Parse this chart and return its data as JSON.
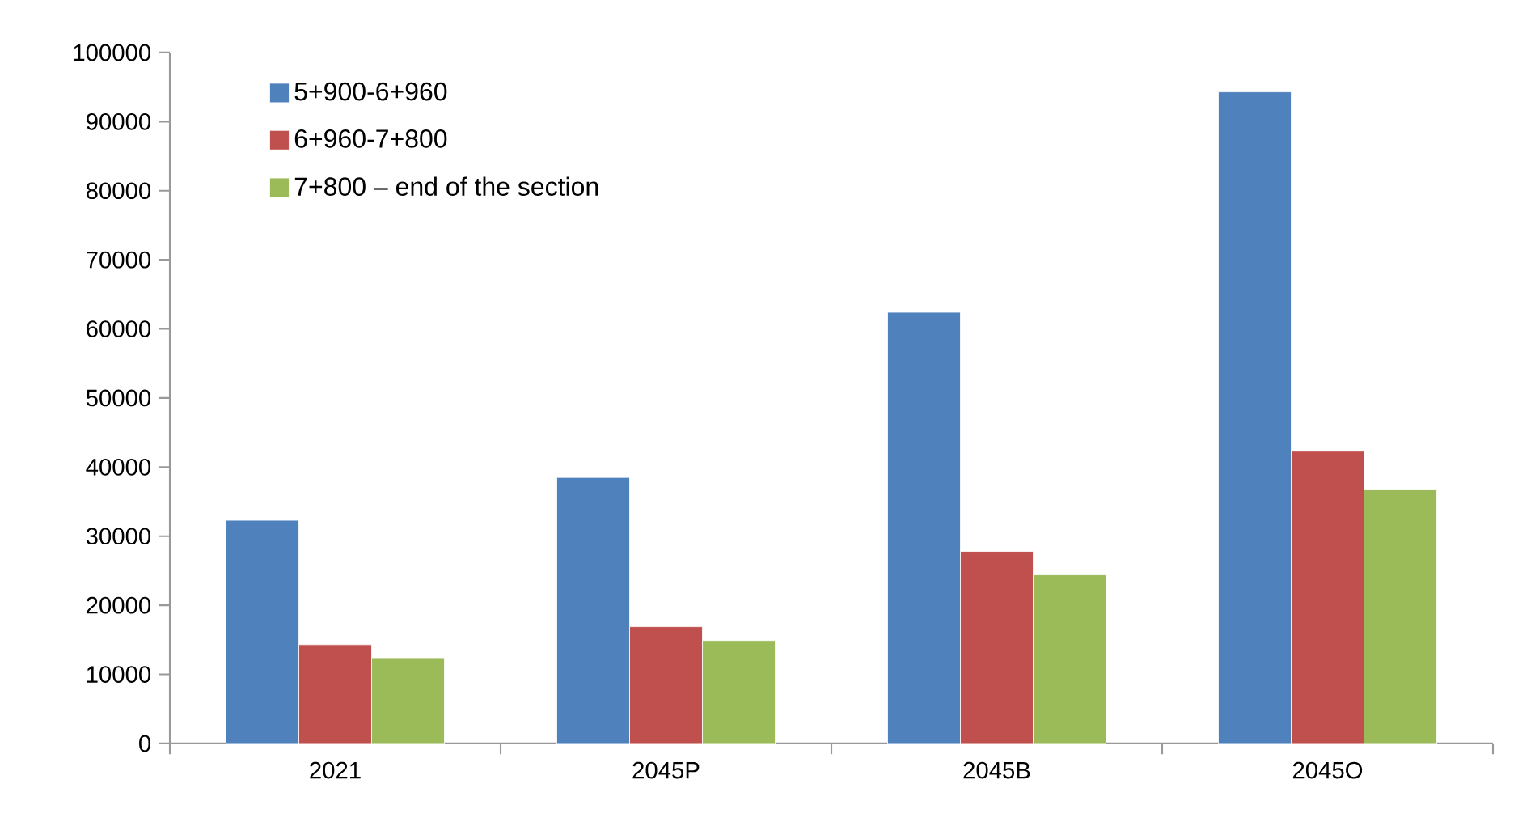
{
  "chart_data": {
    "type": "bar",
    "categories": [
      "2021",
      "2045P",
      "2045B",
      "2045O"
    ],
    "series": [
      {
        "name": "5+900-6+960",
        "color": "#4f81bd",
        "values": [
          32300,
          38500,
          62400,
          94300
        ]
      },
      {
        "name": "6+960-7+800",
        "color": "#c0504d",
        "values": [
          14300,
          16900,
          27800,
          42300
        ]
      },
      {
        "name": "7+800 – end of the section",
        "color": "#9bbb59",
        "values": [
          12400,
          14900,
          24400,
          36700
        ]
      }
    ],
    "ylim": [
      0,
      100000
    ],
    "yticks": [
      0,
      10000,
      20000,
      30000,
      40000,
      50000,
      60000,
      70000,
      80000,
      90000,
      100000
    ],
    "grid": false,
    "legend": "top left"
  }
}
